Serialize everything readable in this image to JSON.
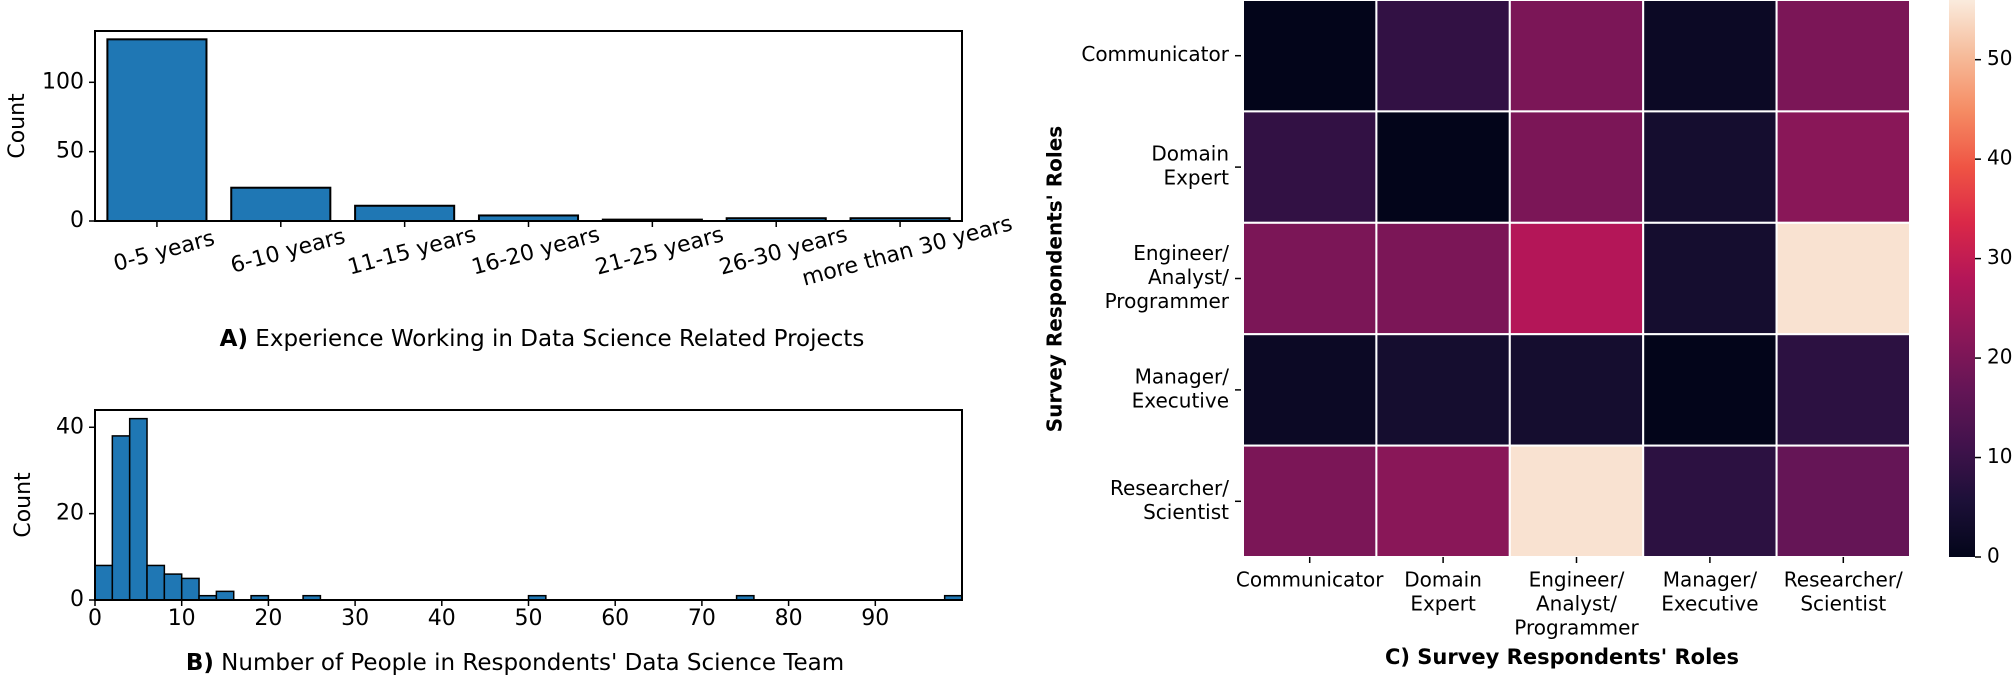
{
  "chart_data": [
    {
      "panel": "A",
      "type": "bar",
      "title_letter": "A)",
      "title": "Experience Working in Data Science Related Projects",
      "ylabel": "Count",
      "categories": [
        "0-5 years",
        "6-10 years",
        "11-15 years",
        "16-20 years",
        "21-25 years",
        "26-30 years",
        "more than 30 years"
      ],
      "values": [
        131,
        24,
        11,
        4,
        1,
        2,
        2
      ],
      "ylim": [
        0,
        137
      ],
      "yticks": [
        0,
        50,
        100
      ],
      "color": "#1f77b4"
    },
    {
      "panel": "B",
      "type": "bar",
      "title_letter": "B)",
      "title": "Number of People in Respondents' Data Science Team",
      "ylabel": "Count",
      "bin_width": 2,
      "bin_starts": [
        0,
        2,
        4,
        6,
        8,
        10,
        12,
        14,
        18,
        24,
        50,
        74,
        98
      ],
      "values": [
        8,
        38,
        42,
        8,
        6,
        5,
        1,
        2,
        1,
        1,
        1,
        1,
        1
      ],
      "xlim": [
        0,
        100
      ],
      "ylim": [
        0,
        44
      ],
      "xticks": [
        0,
        10,
        20,
        30,
        40,
        50,
        60,
        70,
        80,
        90
      ],
      "yticks": [
        0,
        20,
        40
      ],
      "color": "#1f77b4"
    },
    {
      "panel": "C",
      "type": "heatmap",
      "title_letter": "C)",
      "xlabel": "Survey Respondents' Roles",
      "ylabel": "Survey Respondents' Roles",
      "x_categories": [
        "Communicator",
        "Domain Expert",
        "Engineer/ Analyst/ Programmer",
        "Manager/ Executive",
        "Researcher/ Scientist"
      ],
      "x_tick_lines": [
        [
          "Communicator"
        ],
        [
          "Domain",
          "Expert"
        ],
        [
          "Engineer/",
          "Analyst/",
          "Programmer"
        ],
        [
          "Manager/",
          "Executive"
        ],
        [
          "Researcher/",
          "Scientist"
        ]
      ],
      "y_categories": [
        "Communicator",
        "Domain Expert",
        "Engineer/ Analyst/ Programmer",
        "Manager/ Executive",
        "Researcher/ Scientist"
      ],
      "y_tick_lines": [
        [
          "Communicator"
        ],
        [
          "Domain",
          "Expert"
        ],
        [
          "Engineer/",
          "Analyst/",
          "Programmer"
        ],
        [
          "Manager/",
          "Executive"
        ],
        [
          "Researcher/",
          "Scientist"
        ]
      ],
      "values": [
        [
          0,
          9,
          20,
          2,
          20
        ],
        [
          9,
          0,
          20,
          4,
          22
        ],
        [
          20,
          20,
          28,
          4,
          55
        ],
        [
          2,
          4,
          4,
          0,
          8
        ],
        [
          20,
          22,
          55,
          8,
          17
        ]
      ],
      "colormap": "rocket",
      "colorbar_range": [
        0,
        56
      ],
      "colorbar_ticks": [
        0,
        10,
        20,
        30,
        40,
        50
      ]
    }
  ]
}
